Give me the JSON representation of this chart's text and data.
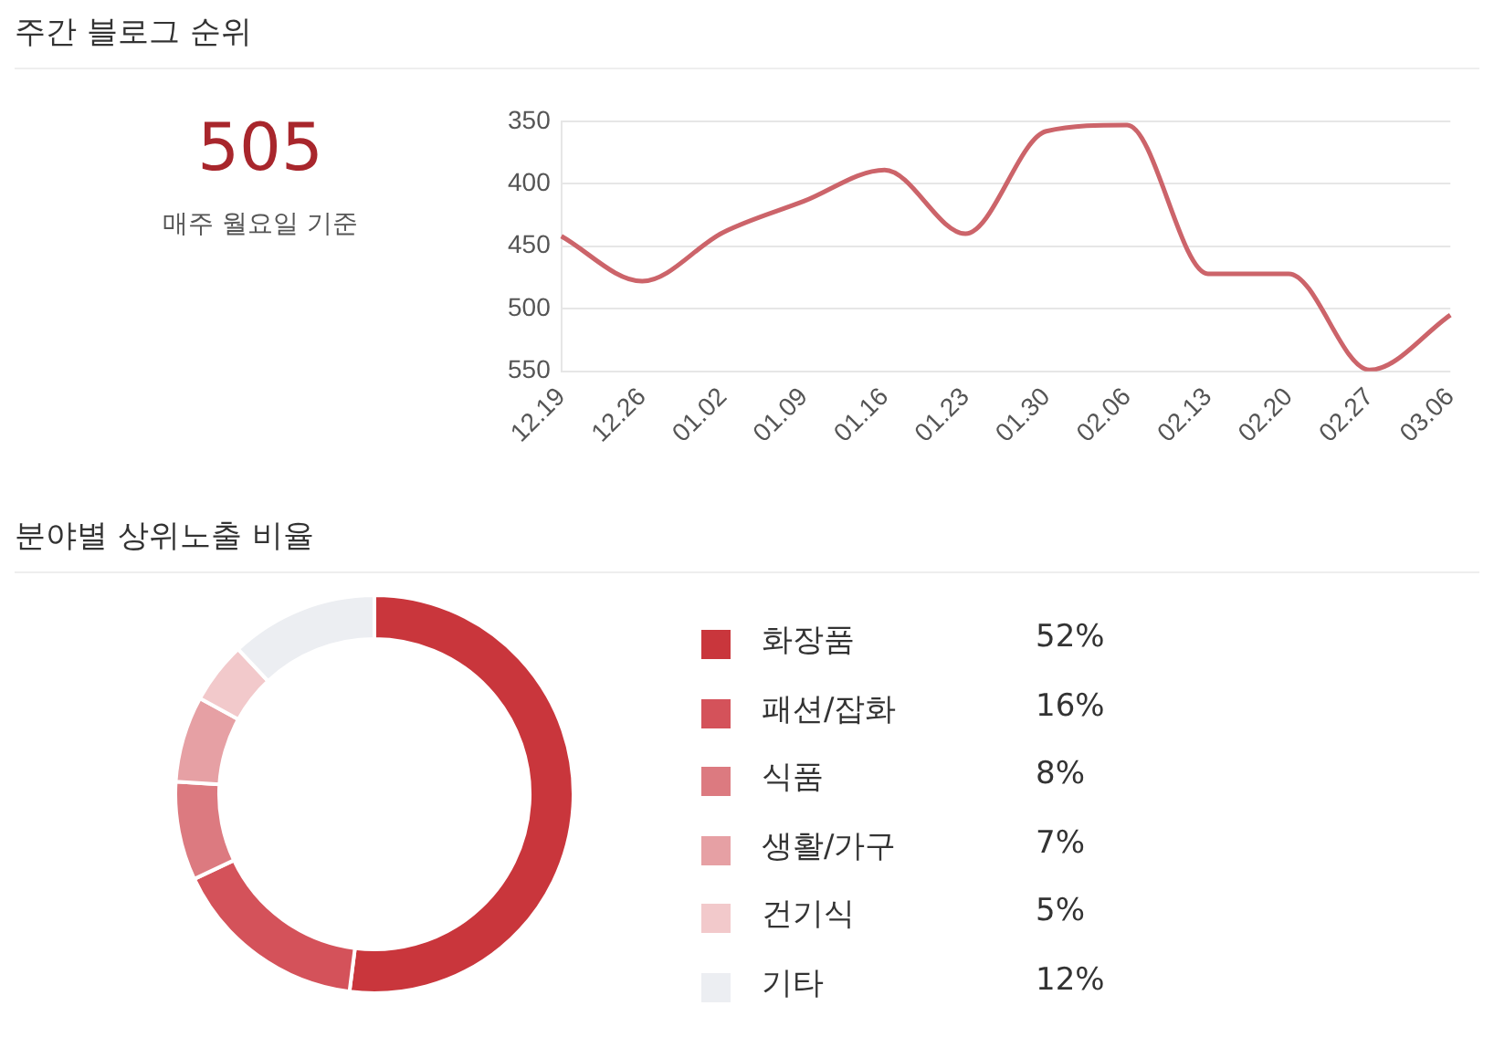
{
  "chart_data": [
    {
      "type": "other",
      "title": "주간 블로그 순위",
      "annotations": [
        "505",
        "매주 월요일 기준"
      ]
    },
    {
      "type": "line",
      "categories": [
        "12.19",
        "12.26",
        "01.02",
        "01.09",
        "01.16",
        "01.23",
        "01.30",
        "02.06",
        "02.13",
        "02.20",
        "02.27",
        "03.06"
      ],
      "series": [
        {
          "color": "#cc646a",
          "values": [
            442,
            478,
            439,
            414,
            389,
            440,
            358,
            353,
            472,
            472,
            549,
            505
          ]
        }
      ],
      "ylim": [
        550,
        350
      ],
      "yticks": [
        350,
        400,
        450,
        500,
        550
      ],
      "grid": "y",
      "marker": "none",
      "line_style": "solid"
    },
    {
      "type": "donut",
      "title": "분야별 상위노출 비율",
      "categories": [
        "화장품",
        "패션/잡화",
        "식품",
        "생활/가구",
        "건기식",
        "기타"
      ],
      "values": [
        52,
        16,
        8,
        7,
        5,
        12
      ],
      "colors": [
        "#c9363c",
        "#d4525a",
        "#dc7a80",
        "#e6a0a4",
        "#f2c9cb",
        "#eceef2"
      ],
      "value_labels": [
        "52%",
        "16%",
        "8%",
        "7%",
        "5%",
        "12%"
      ],
      "legend": "right"
    }
  ]
}
